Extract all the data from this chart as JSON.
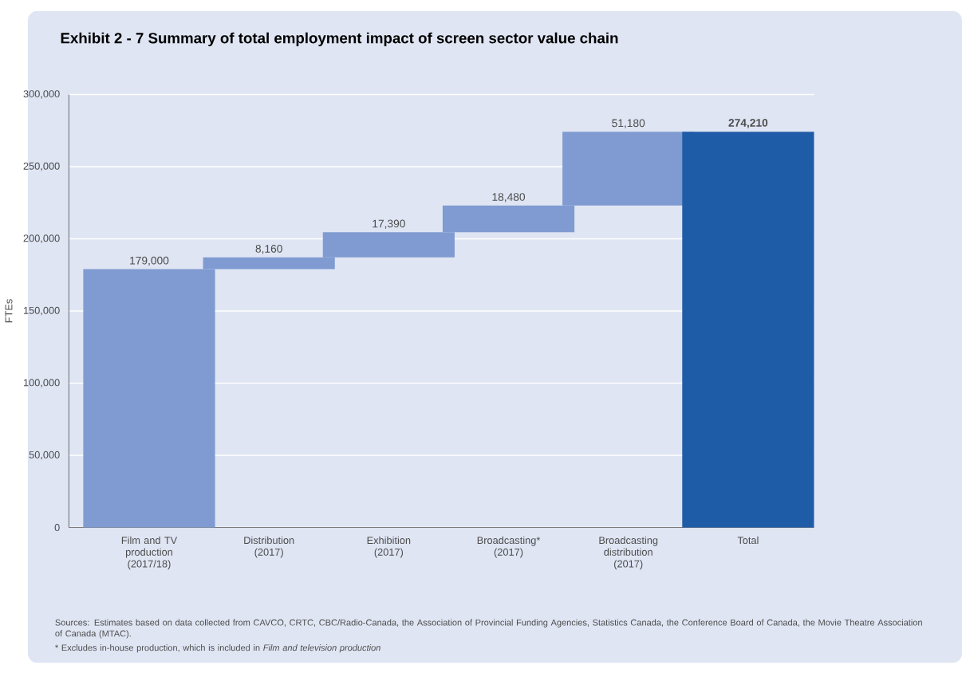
{
  "chart_data": {
    "type": "bar",
    "title": "Exhibit 2 - 7  Summary of total employment impact of screen sector value chain",
    "ylabel": "FTEs",
    "categories": [
      "Film and TV production (2017/18)",
      "Distribution (2017)",
      "Exhibition (2017)",
      "Broadcasting* (2017)",
      "Broadcasting distribution (2017)",
      "Total"
    ],
    "values": [
      179000,
      8160,
      17390,
      18480,
      51180,
      274210
    ],
    "base": [
      0,
      179000,
      187160,
      204550,
      223030,
      0
    ],
    "colors": [
      "#7f9bd1",
      "#7f9bd1",
      "#7f9bd1",
      "#7f9bd1",
      "#7f9bd1",
      "#1f5ca8"
    ],
    "value_labels": [
      "179,000",
      "8,160",
      "17,390",
      "18,480",
      "51,180",
      "274,210"
    ],
    "ylim": [
      0,
      300000
    ],
    "yticks": [
      {
        "value": 0,
        "label": "0"
      },
      {
        "value": 50000,
        "label": "50,000"
      },
      {
        "value": 100000,
        "label": "100,000"
      },
      {
        "value": 150000,
        "label": "150,000"
      },
      {
        "value": 200000,
        "label": "200,000"
      },
      {
        "value": 250000,
        "label": "250,000"
      },
      {
        "value": 300000,
        "label": "300,000"
      }
    ],
    "grid": "y",
    "annotations": [
      "Sources: Estimates based on data collected from CAVCO, CRTC, CBC/Radio-Canada, the Association of Provincial Funding Agencies, Statistics Canada, the Conference Board of Canada, the Movie Theatre Association of Canada (MTAC).",
      "* Excludes in-house production, which is included in *Film and television production*"
    ]
  }
}
